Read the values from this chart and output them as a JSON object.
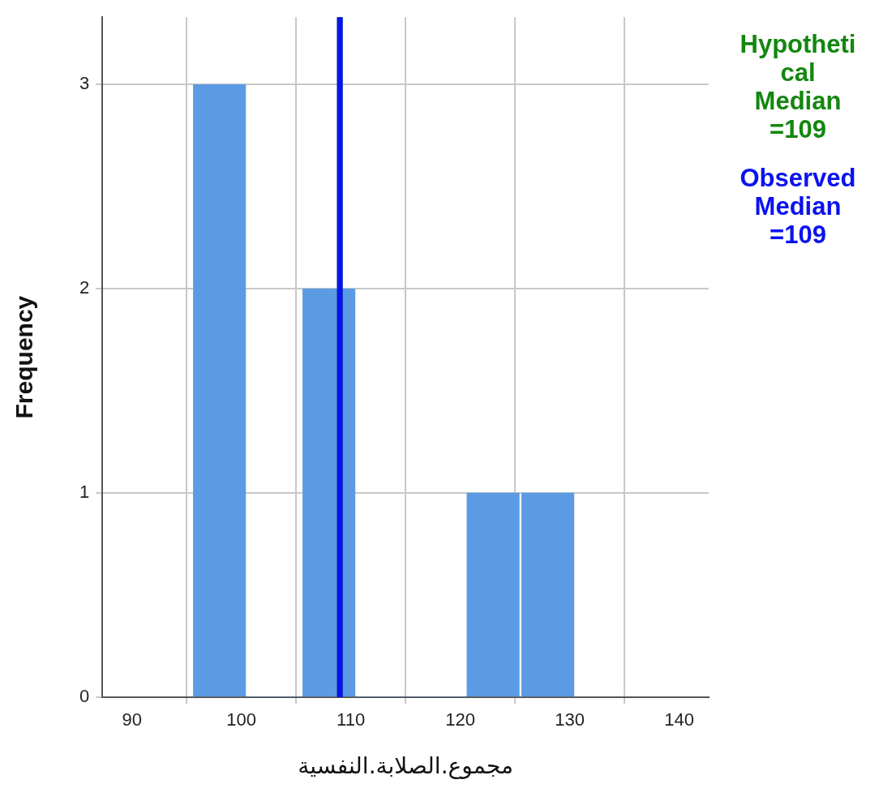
{
  "chart_data": {
    "type": "histogram",
    "xlabel": "مجموع.الصلابة.النفسية",
    "ylabel": "Frequency",
    "bins": [
      95.5,
      100.5,
      105.5,
      110.5,
      115.5,
      120.5,
      125.5,
      130.5
    ],
    "values": [
      3,
      0,
      2,
      0,
      0,
      1,
      1
    ],
    "color": "#5b9be3",
    "xlim": [
      87.3,
      142.7
    ],
    "xticks": [
      90,
      100,
      110,
      120,
      130,
      140
    ],
    "ylim": [
      0,
      3.33
    ],
    "yticks": [
      0,
      1,
      2,
      3
    ],
    "grid": true,
    "legend": false,
    "ref_lines": [
      {
        "axis": "x",
        "value": 109,
        "label": "Hypothetical Median =109",
        "color": "#13870f"
      },
      {
        "axis": "x",
        "value": 109,
        "label": "Observed Median =109",
        "color": "#0a12f0"
      }
    ]
  }
}
